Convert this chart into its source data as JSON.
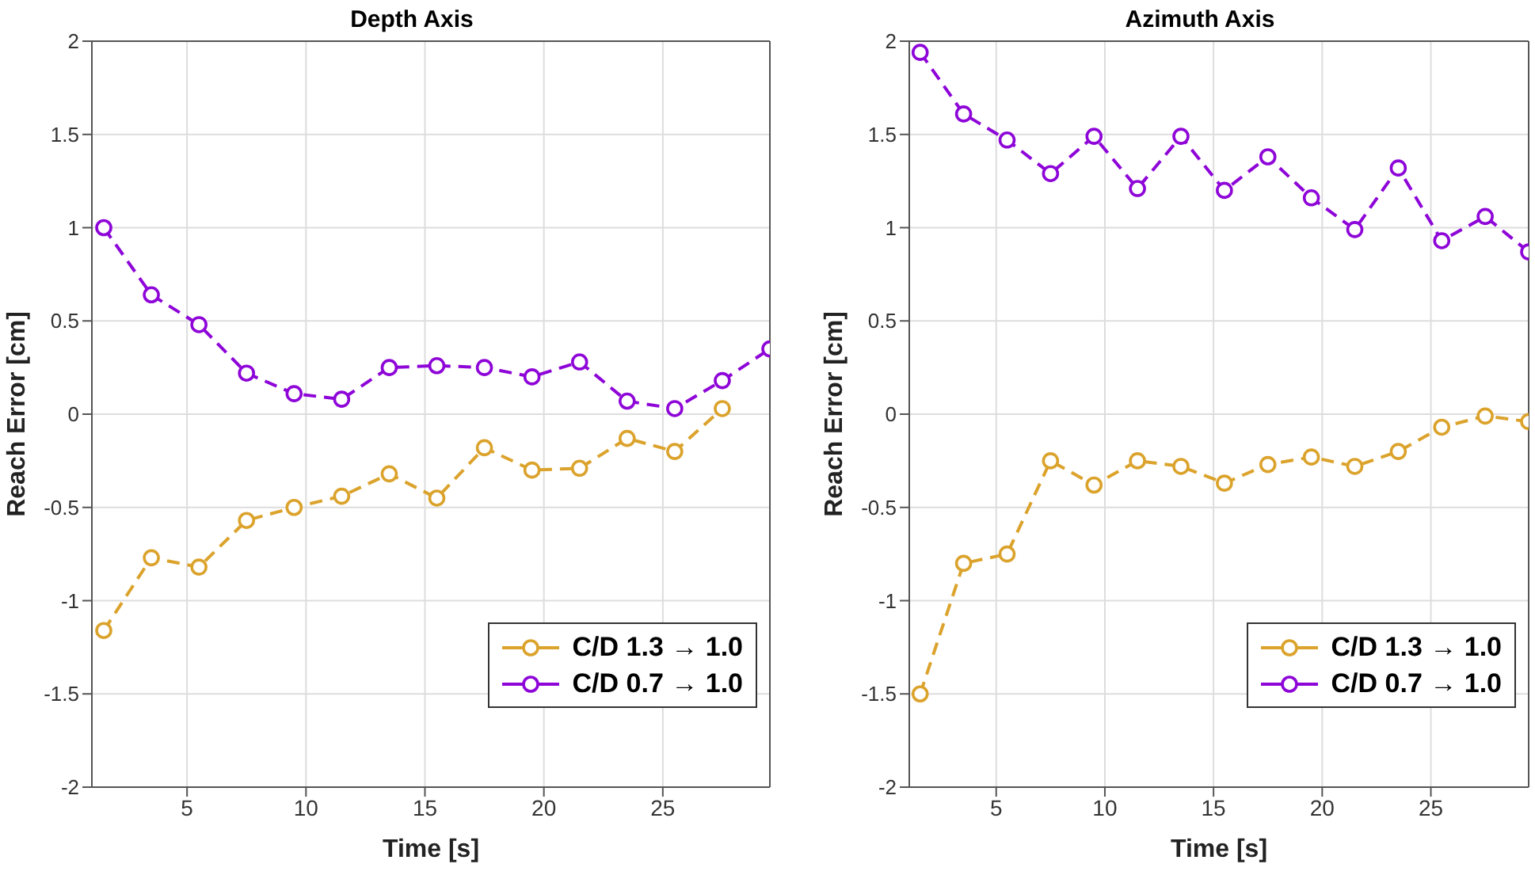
{
  "chart_data": [
    {
      "type": "line",
      "title": "Depth Axis",
      "xlabel": "Time [s]",
      "ylabel": "Reach Error [cm]",
      "xlim": [
        1,
        29.5
      ],
      "xticks": [
        5,
        10,
        15,
        20,
        25
      ],
      "ylim": [
        -2,
        2
      ],
      "yticks": [
        -2,
        -1.5,
        -1,
        -0.5,
        0,
        0.5,
        1,
        1.5,
        2
      ],
      "grid": true,
      "legend": "bottom right",
      "marker": "circle",
      "line_style": "dashed",
      "series": [
        {
          "name": "C/D 1.3 → 1.0",
          "color": "#dba32c",
          "x": [
            1.5,
            3.5,
            5.5,
            7.5,
            9.5,
            11.5,
            13.5,
            15.5,
            17.5,
            19.5,
            21.5,
            23.5,
            25.5,
            27.5
          ],
          "values": [
            -1.16,
            -0.77,
            -0.82,
            -0.57,
            -0.5,
            -0.44,
            -0.32,
            -0.45,
            -0.18,
            -0.3,
            -0.29,
            -0.13,
            -0.2,
            0.03
          ]
        },
        {
          "name": "C/D 0.7 → 1.0",
          "color": "#8e05d8",
          "x": [
            1.5,
            3.5,
            5.5,
            7.5,
            9.5,
            11.5,
            13.5,
            15.5,
            17.5,
            19.5,
            21.5,
            23.5,
            25.5,
            27.5,
            29.5
          ],
          "values": [
            1.0,
            0.64,
            0.48,
            0.22,
            0.11,
            0.08,
            0.25,
            0.26,
            0.25,
            0.2,
            0.28,
            0.07,
            0.03,
            0.18,
            0.35
          ]
        }
      ]
    },
    {
      "type": "line",
      "title": "Azimuth Axis",
      "xlabel": "Time [s]",
      "ylabel": "Reach Error [cm]",
      "xlim": [
        1,
        29.5
      ],
      "xticks": [
        5,
        10,
        15,
        20,
        25
      ],
      "ylim": [
        -2,
        2
      ],
      "yticks": [
        -2,
        -1.5,
        -1,
        -0.5,
        0,
        0.5,
        1,
        1.5,
        2
      ],
      "grid": true,
      "legend": "bottom right",
      "marker": "circle",
      "line_style": "dashed",
      "series": [
        {
          "name": "C/D 1.3 → 1.0",
          "color": "#dba32c",
          "x": [
            1.5,
            3.5,
            5.5,
            7.5,
            9.5,
            11.5,
            13.5,
            15.5,
            17.5,
            19.5,
            21.5,
            23.5,
            25.5,
            27.5,
            29.5
          ],
          "values": [
            -1.5,
            -0.8,
            -0.75,
            -0.25,
            -0.38,
            -0.25,
            -0.28,
            -0.37,
            -0.27,
            -0.23,
            -0.28,
            -0.2,
            -0.07,
            -0.01,
            -0.04
          ]
        },
        {
          "name": "C/D 0.7 → 1.0",
          "color": "#8e05d8",
          "x": [
            1.5,
            3.5,
            5.5,
            7.5,
            9.5,
            11.5,
            13.5,
            15.5,
            17.5,
            19.5,
            21.5,
            23.5,
            25.5,
            27.5,
            29.5
          ],
          "values": [
            1.94,
            1.61,
            1.47,
            1.29,
            1.49,
            1.21,
            1.49,
            1.2,
            1.38,
            1.16,
            0.99,
            1.32,
            0.93,
            1.06,
            0.87
          ]
        }
      ]
    }
  ]
}
